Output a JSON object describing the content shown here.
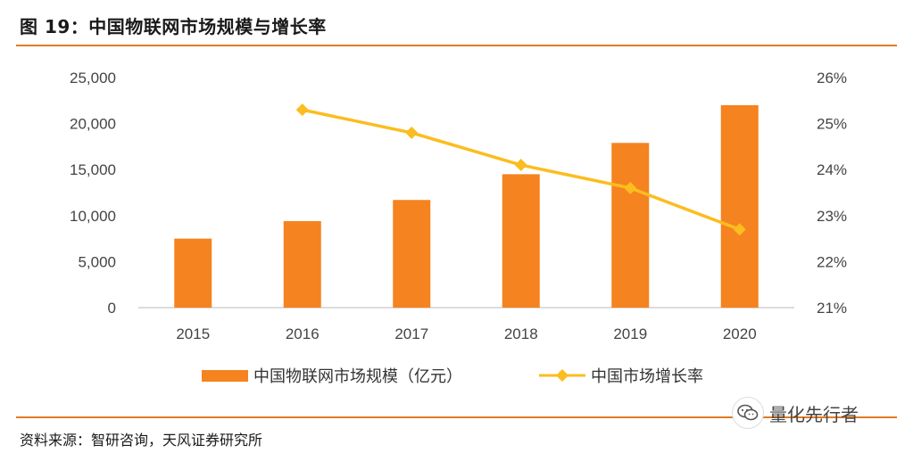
{
  "figure": {
    "title": "图 19：中国物联网市场规模与增长率",
    "source": "资料来源：智研咨询，天风证券研究所",
    "watermark_text": "量化先行者",
    "watermark_icon": "wechat-icon"
  },
  "colors": {
    "bar": "#f5831f",
    "line": "#fbbd1f",
    "accent_rule": "#e07b22",
    "axis": "#d0d0d0"
  },
  "chart_data": {
    "type": "bar",
    "categories": [
      "2015",
      "2016",
      "2017",
      "2018",
      "2019",
      "2020"
    ],
    "series": [
      {
        "name": "中国物联网市场规模（亿元）",
        "chart_type": "bar",
        "axis": "left",
        "values": [
          7500,
          9400,
          11700,
          14500,
          17900,
          22000
        ]
      },
      {
        "name": "中国市场增长率",
        "chart_type": "line",
        "axis": "right",
        "marker": "diamond",
        "values": [
          null,
          25.3,
          24.8,
          24.1,
          23.6,
          22.7
        ]
      }
    ],
    "y_left": {
      "range": [
        0,
        25000
      ],
      "ticks": [
        0,
        5000,
        10000,
        15000,
        20000,
        25000
      ],
      "tick_labels": [
        "0",
        "5,000",
        "10,000",
        "15,000",
        "20,000",
        "25,000"
      ]
    },
    "y_right": {
      "range": [
        21,
        26
      ],
      "ticks": [
        21,
        22,
        23,
        24,
        25,
        26
      ],
      "tick_labels": [
        "21%",
        "22%",
        "23%",
        "24%",
        "25%",
        "26%"
      ]
    },
    "grid": false,
    "legend_position": "bottom"
  }
}
